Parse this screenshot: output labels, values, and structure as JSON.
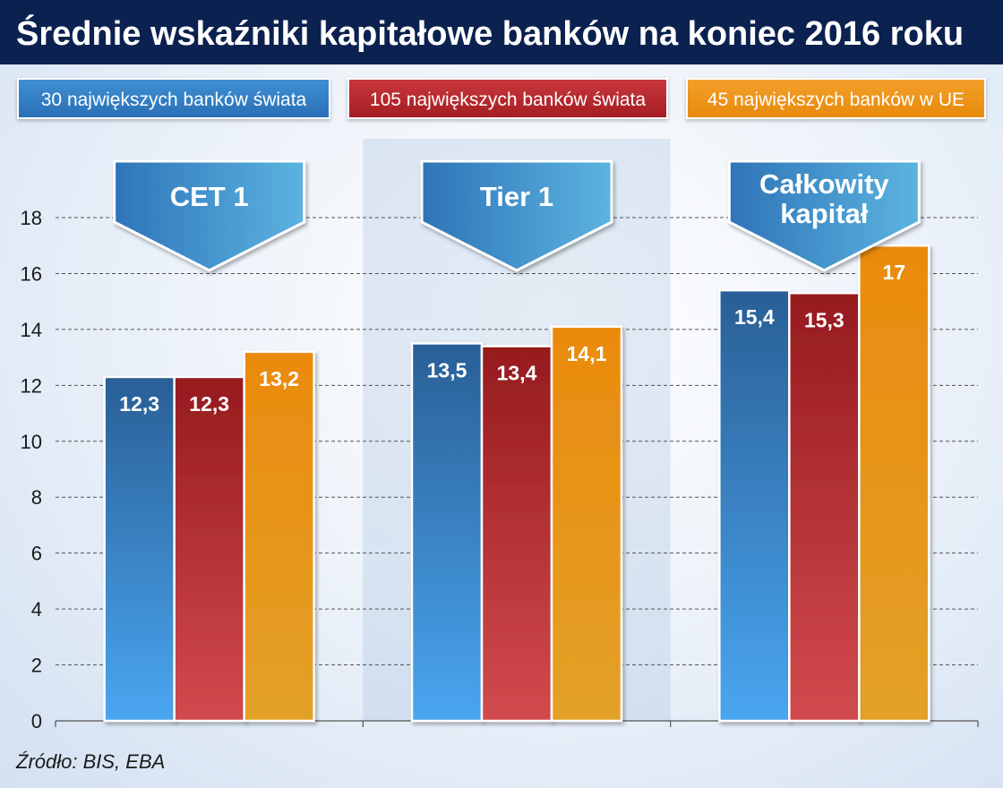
{
  "title": "Średnie wskaźniki kapitałowe banków na koniec 2016 roku",
  "source": "Źródło: BIS, EBA",
  "colors": {
    "title_bg": "#0b2150",
    "series_blue": "#2e6eb0",
    "series_red": "#b0262b",
    "series_orange": "#ec9112",
    "banner": "#3c8ccc"
  },
  "chart_data": {
    "type": "bar",
    "categories": [
      "CET 1",
      "Tier 1",
      "Całkowity kapitał"
    ],
    "category_banners": [
      [
        "CET 1"
      ],
      [
        "Tier 1"
      ],
      [
        "Całkowity",
        "kapitał"
      ]
    ],
    "series": [
      {
        "name": "30 największych banków świata",
        "values": [
          12.3,
          13.5,
          15.4
        ],
        "labels": [
          "12,3",
          "13,5",
          "15,4"
        ]
      },
      {
        "name": "105 największych banków świata",
        "values": [
          12.3,
          13.4,
          15.3
        ],
        "labels": [
          "12,3",
          "13,4",
          "15,3"
        ]
      },
      {
        "name": "45 największych banków w UE",
        "values": [
          13.2,
          14.1,
          17
        ],
        "labels": [
          "13,2",
          "14,1",
          "17"
        ]
      }
    ],
    "ylim": [
      0,
      18
    ],
    "yticks": [
      "0",
      "2",
      "4",
      "6",
      "8",
      "10",
      "12",
      "14",
      "16",
      "18"
    ],
    "xlabel": "",
    "ylabel": "",
    "grid": true,
    "legend_position": "top"
  }
}
